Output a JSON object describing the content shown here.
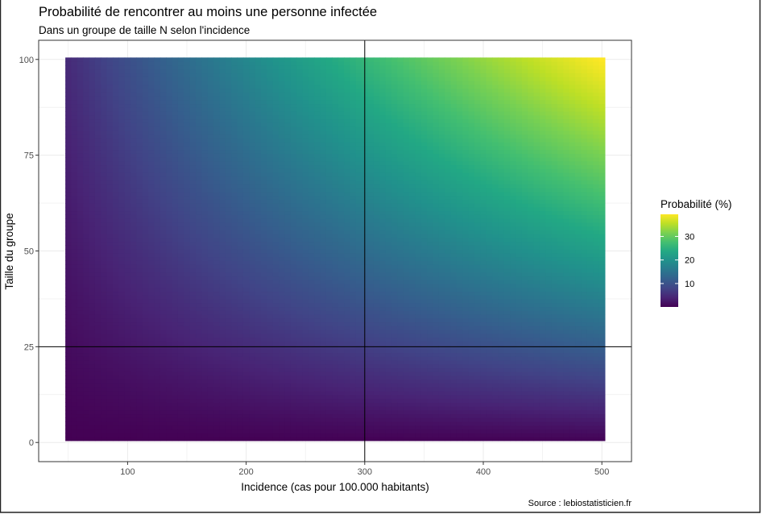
{
  "chart_data": {
    "type": "heatmap",
    "title": "Probabilité de rencontrer au moins une personne infectée",
    "subtitle": "Dans un groupe de taille N selon l'incidence",
    "xlabel": "Incidence (cas pour 100.000 habitants)",
    "ylabel": "Taille du groupe",
    "caption": "Source : lebiostatisticien.fr",
    "x_range": [
      50,
      500
    ],
    "x_step": 5,
    "y_range": [
      1,
      100
    ],
    "y_step": 1,
    "value": "100 * (1 - (1 - incidence/100000)^N)",
    "value_range": [
      0.05,
      39.4
    ],
    "xlim": [
      25,
      525
    ],
    "ylim": [
      -5,
      105
    ],
    "x_ticks": [
      "100",
      "200",
      "300",
      "400",
      "500"
    ],
    "y_ticks": [
      "0",
      "25",
      "50",
      "75",
      "100"
    ],
    "reference_lines": {
      "vertical_x": 300,
      "horizontal_y": 25
    },
    "legend": {
      "title": "Probabilité (%)",
      "labels": [
        "10",
        "20",
        "30"
      ],
      "placement": "right",
      "palette": "viridis",
      "colors": [
        "#440154",
        "#482475",
        "#414487",
        "#355f8d",
        "#2a788e",
        "#21918c",
        "#22a884",
        "#44bf70",
        "#7ad151",
        "#bddf26",
        "#fde725"
      ]
    },
    "grid": true
  }
}
